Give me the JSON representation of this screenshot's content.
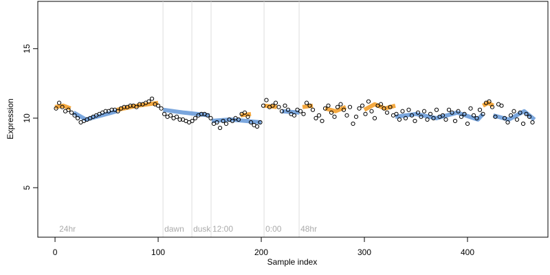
{
  "chart_data": {
    "type": "scatter",
    "x_label": "Sample index",
    "y_label": "Expression",
    "xlim": [
      -16.7,
      478
    ],
    "ylim": [
      1.44,
      18.4
    ],
    "xticks": [
      0,
      100,
      200,
      300,
      400
    ],
    "yticks": [
      5,
      10,
      15
    ],
    "annotations": [
      {
        "x": 2.7,
        "label": "24hr",
        "line": false
      },
      {
        "x": 104.7,
        "label": "dawn",
        "line": true
      },
      {
        "x": 132.7,
        "label": "dusk",
        "line": true
      },
      {
        "x": 151.3,
        "label": "12:00",
        "line": true
      },
      {
        "x": 202.7,
        "label": "0:00",
        "line": true
      },
      {
        "x": 236.7,
        "label": "48hr",
        "line": true
      }
    ],
    "annotation_line_color": "#dddddd",
    "series": [
      {
        "mode": "line",
        "color": "#f4a941",
        "x": [
          0,
          8,
          15,
          null,
          60,
          80,
          100,
          null,
          180,
          190,
          null,
          203,
          215,
          null,
          240,
          250,
          null,
          262,
          272,
          282,
          null,
          300,
          310,
          320,
          330,
          null,
          415,
          420,
          425
        ],
        "values": [
          10.8,
          10.9,
          10.7,
          null,
          10.6,
          10.9,
          11.1,
          null,
          10.2,
          10.3,
          null,
          10.9,
          10.8,
          null,
          10.8,
          10.9,
          null,
          10.7,
          10.5,
          10.8,
          null,
          10.6,
          11.0,
          10.7,
          10.9,
          null,
          10.9,
          11.1,
          10.9
        ]
      },
      {
        "mode": "line",
        "color": "#7aa6dd",
        "x": [
          18,
          30,
          45,
          60,
          null,
          105,
          125,
          150,
          null,
          152,
          170,
          200,
          null,
          220,
          237,
          null,
          330,
          350,
          370,
          390,
          410,
          415,
          null,
          425,
          440,
          455,
          465
        ],
        "values": [
          10.4,
          9.9,
          10.2,
          10.5,
          null,
          10.6,
          10.4,
          10.2,
          null,
          9.8,
          9.9,
          9.7,
          null,
          10.5,
          10.4,
          null,
          10.1,
          10.3,
          10.0,
          10.4,
          9.9,
          10.3,
          null,
          10.2,
          9.9,
          10.5,
          9.9
        ]
      },
      {
        "mode": "markers",
        "color": "#000000",
        "x": [
          1,
          4,
          7,
          10,
          13,
          16,
          19,
          22,
          25,
          28,
          31,
          34,
          37,
          40,
          43,
          46,
          49,
          52,
          55,
          58,
          61,
          64,
          67,
          70,
          73,
          76,
          79,
          82,
          85,
          88,
          91,
          94,
          97,
          100,
          103,
          106,
          109,
          112,
          115,
          118,
          121,
          124,
          127,
          130,
          133,
          136,
          139,
          142,
          145,
          148,
          151,
          154,
          157,
          160,
          163,
          166,
          169,
          172,
          175,
          178,
          181,
          184,
          187,
          190,
          193,
          196,
          199,
          202,
          205,
          208,
          211,
          214,
          217,
          220,
          223,
          226,
          229,
          232,
          235,
          238,
          241,
          244,
          247,
          250,
          253,
          256,
          259,
          262,
          265,
          268,
          271,
          274,
          277,
          280,
          283,
          286,
          289,
          292,
          295,
          298,
          301,
          304,
          307,
          310,
          313,
          316,
          319,
          322,
          325,
          328,
          331,
          334,
          337,
          340,
          343,
          346,
          349,
          352,
          355,
          358,
          361,
          364,
          367,
          370,
          373,
          376,
          379,
          382,
          385,
          388,
          391,
          394,
          397,
          400,
          403,
          406,
          409,
          412,
          415,
          418,
          421,
          424,
          427,
          430,
          433,
          436,
          439,
          442,
          445,
          448,
          451,
          454,
          457,
          460,
          463
        ],
        "values": [
          10.7,
          11.1,
          10.8,
          10.5,
          10.6,
          10.4,
          10.2,
          10.0,
          9.7,
          9.8,
          9.9,
          10.0,
          10.1,
          10.2,
          10.3,
          10.4,
          10.5,
          10.5,
          10.6,
          10.6,
          10.5,
          10.7,
          10.8,
          10.8,
          10.9,
          10.9,
          10.8,
          11.0,
          11.0,
          11.1,
          11.2,
          11.4,
          11.0,
          10.9,
          10.7,
          10.3,
          10.1,
          10.2,
          10.0,
          10.1,
          9.9,
          9.9,
          9.8,
          9.7,
          9.8,
          10.0,
          10.2,
          10.3,
          10.3,
          10.2,
          10.0,
          9.6,
          9.7,
          9.3,
          9.8,
          9.6,
          9.9,
          9.8,
          10.0,
          9.9,
          10.3,
          10.4,
          10.1,
          9.7,
          9.5,
          9.4,
          9.7,
          10.9,
          11.3,
          10.8,
          10.9,
          11.1,
          10.8,
          10.5,
          10.9,
          10.6,
          10.3,
          10.2,
          10.6,
          10.5,
          10.3,
          11.1,
          10.9,
          10.6,
          10.0,
          10.2,
          9.8,
          10.7,
          10.9,
          10.4,
          10.1,
          10.8,
          11.0,
          10.6,
          10.2,
          10.8,
          9.6,
          10.1,
          10.7,
          10.9,
          10.3,
          11.2,
          10.5,
          10.0,
          10.9,
          11.0,
          10.7,
          10.4,
          10.8,
          10.2,
          10.3,
          9.9,
          10.5,
          10.0,
          10.6,
          10.2,
          9.8,
          10.4,
          10.1,
          10.5,
          9.9,
          10.3,
          10.0,
          10.6,
          10.1,
          10.2,
          9.9,
          10.6,
          10.4,
          9.8,
          10.5,
          10.1,
          10.3,
          9.6,
          10.7,
          10.2,
          10.0,
          10.6,
          10.3,
          11.1,
          11.2,
          10.8,
          10.1,
          11.0,
          10.9,
          10.0,
          9.7,
          10.2,
          10.5,
          9.9,
          10.4,
          9.6,
          10.3,
          10.1,
          9.7
        ]
      }
    ]
  }
}
